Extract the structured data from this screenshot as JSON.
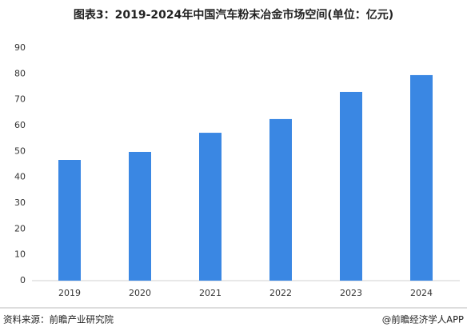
{
  "chart_data": {
    "type": "bar",
    "title": "图表3：2019-2024年中国汽车粉末冶金市场空间(单位：亿元)",
    "categories": [
      "2019",
      "2020",
      "2021",
      "2022",
      "2023",
      "2024"
    ],
    "values": [
      46.7,
      49.8,
      57.2,
      62.5,
      73,
      79.5
    ],
    "color": "#3a87e3",
    "ylim": [
      0,
      90
    ],
    "yticks": [
      0,
      10,
      20,
      30,
      40,
      50,
      60,
      70,
      80,
      90
    ],
    "grid": false,
    "source": "资料来源：前瞻产业研究院",
    "credit": "@前瞻经济学人APP"
  }
}
